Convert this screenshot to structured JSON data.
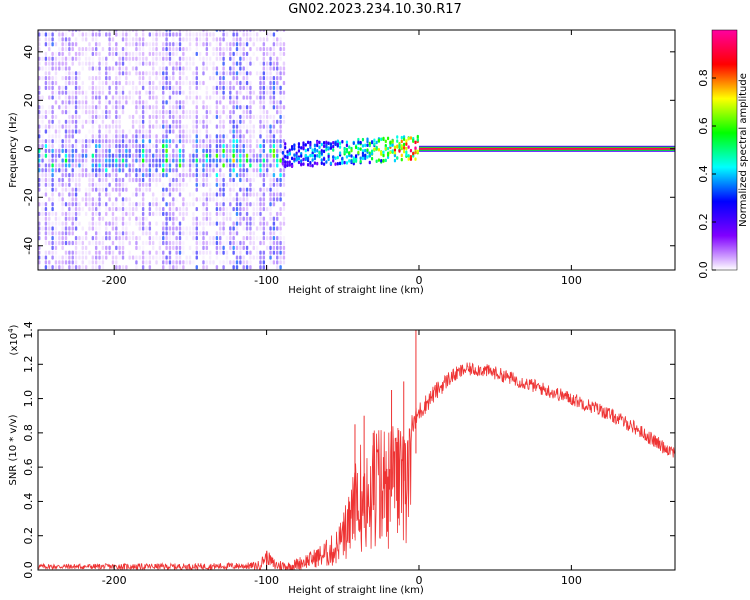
{
  "title": "GN02.2023.234.10.30.R17",
  "chart_data": [
    {
      "type": "heatmap",
      "name": "spectrogram",
      "title": "GN02.2023.234.10.30.R17",
      "xlabel": "Height of straight line (km)",
      "ylabel": "Frequency (Hz)",
      "xlim": [
        -250,
        168
      ],
      "ylim": [
        -50,
        49
      ],
      "xticks": [
        -200,
        -100,
        0,
        100
      ],
      "xtick_labels": [
        "-200",
        "-100",
        "0",
        "100"
      ],
      "yticks": [
        -40,
        -20,
        0,
        20,
        40
      ],
      "ytick_labels": [
        "-40",
        "-20",
        "0",
        "20",
        "40"
      ],
      "ridge": [
        {
          "x": -90,
          "y": -3.5,
          "a": 0.35
        },
        {
          "x": -60,
          "y": -2.5,
          "a": 0.45
        },
        {
          "x": -30,
          "y": -1.5,
          "a": 0.6
        },
        {
          "x": 0,
          "y": 0,
          "a": 0.92
        },
        {
          "x": 168,
          "y": 0,
          "a": 0.92
        }
      ],
      "noise_region": {
        "x_from": -250,
        "x_to": -88,
        "freq_from": -50,
        "freq_to": 49
      },
      "colorbar": {
        "label": "Normalized spectral amplitude",
        "range": [
          0.0,
          1.0
        ],
        "ticks": [
          0.0,
          0.2,
          0.4,
          0.6,
          0.8
        ],
        "tick_labels": [
          "0.0",
          "0.2",
          "0.4",
          "0.6",
          "0.8"
        ],
        "colors": [
          "#ffffff",
          "#8000ff",
          "#0000ff",
          "#00ffff",
          "#00ff00",
          "#ffff00",
          "#ff0000",
          "#ff00a0"
        ]
      }
    },
    {
      "type": "line",
      "name": "snr",
      "xlabel": "Height of straight line (km)",
      "ylabel": "SNR (10 * v/v)",
      "scale_label": "(x10",
      "scale_exponent": "4",
      "scale_close": ")",
      "xlim": [
        -250,
        168
      ],
      "ylim": [
        0,
        1.4
      ],
      "xticks": [
        -200,
        -100,
        0,
        100
      ],
      "xtick_labels": [
        "-200",
        "-100",
        "0",
        "100"
      ],
      "yticks": [
        0.0,
        0.2,
        0.4,
        0.6,
        0.8,
        1.0,
        1.2,
        1.4
      ],
      "ytick_labels": [
        "0.0",
        "0.2",
        "0.4",
        "0.6",
        "0.8",
        "1.0",
        "1.2",
        "1.4"
      ],
      "color": "#ee3333",
      "envelope": {
        "x": [
          -250,
          -150,
          -105,
          -100,
          -95,
          -85,
          -75,
          -65,
          -55,
          -45,
          -40,
          -35,
          -28,
          -22,
          -15,
          -10,
          -5,
          0,
          10,
          20,
          30,
          40,
          50,
          60,
          80,
          100,
          120,
          140,
          160,
          168
        ],
        "y": [
          0.02,
          0.02,
          0.025,
          0.08,
          0.03,
          0.02,
          0.05,
          0.08,
          0.12,
          0.3,
          0.45,
          0.55,
          0.55,
          0.6,
          0.65,
          0.72,
          0.82,
          0.92,
          1.03,
          1.12,
          1.17,
          1.17,
          1.15,
          1.12,
          1.06,
          1.0,
          0.93,
          0.84,
          0.72,
          0.69
        ]
      },
      "noise": {
        "x": [
          -250,
          -110,
          -100,
          -85,
          -70,
          -50,
          -40,
          -30,
          -20,
          -10,
          0,
          30,
          60,
          100,
          168
        ],
        "y": [
          0.015,
          0.02,
          0.04,
          0.03,
          0.05,
          0.12,
          0.25,
          0.3,
          0.25,
          0.12,
          0.06,
          0.04,
          0.04,
          0.04,
          0.04
        ]
      },
      "spikes": [
        {
          "x": -100,
          "y": 0.11
        },
        {
          "x": -42,
          "y": 0.85
        },
        {
          "x": -36,
          "y": 0.9
        },
        {
          "x": -30,
          "y": 0.8
        },
        {
          "x": -18,
          "y": 1.05
        },
        {
          "x": -10,
          "y": 1.1
        },
        {
          "x": -2,
          "y": 1.42
        }
      ]
    }
  ]
}
